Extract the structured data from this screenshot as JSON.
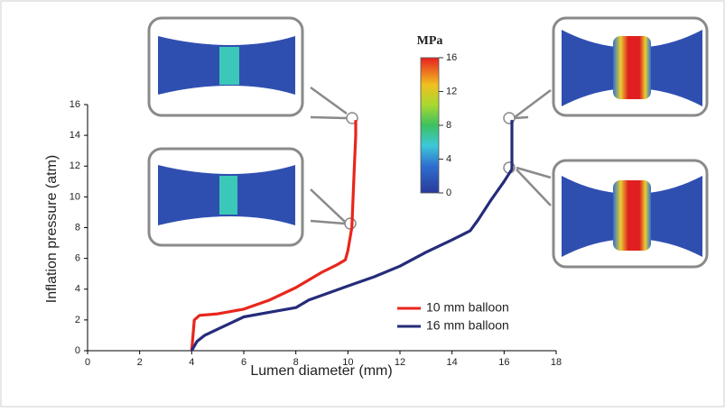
{
  "chart_data": {
    "type": "line",
    "x_label": "Lumen diameter (mm)",
    "y_label": "Inflation pressure (atm)",
    "xlim": [
      0,
      18
    ],
    "xticks": [
      0,
      2,
      4,
      6,
      8,
      10,
      12,
      14,
      16,
      18
    ],
    "ylim": [
      0,
      16
    ],
    "yticks": [
      0,
      2,
      4,
      6,
      8,
      10,
      12,
      14,
      16
    ],
    "legend": "lower right",
    "series": [
      {
        "name": "10 mm balloon",
        "color": "#e8261c",
        "x": [
          4.0,
          4.05,
          4.1,
          4.3,
          5,
          6,
          7,
          8,
          8.5,
          9,
          9.6,
          9.9,
          10,
          10.1,
          10.15,
          10.2,
          10.25,
          10.3,
          10.3
        ],
        "values": [
          0,
          1,
          2,
          2.3,
          2.4,
          2.7,
          3.3,
          4.1,
          4.6,
          5.1,
          5.6,
          5.9,
          6.5,
          7.5,
          8,
          10,
          12,
          14,
          15
        ]
      },
      {
        "name": "16 mm balloon",
        "color": "#252c7a",
        "x": [
          4.0,
          4.2,
          4.5,
          5,
          5.5,
          6,
          7,
          8,
          8.5,
          9,
          10,
          11,
          12,
          13,
          14,
          14.7,
          15,
          15.5,
          16,
          16.3,
          16.3,
          16.3
        ],
        "values": [
          0,
          0.6,
          1.0,
          1.4,
          1.8,
          2.2,
          2.5,
          2.8,
          3.3,
          3.6,
          4.2,
          4.8,
          5.5,
          6.4,
          7.2,
          7.8,
          8.5,
          9.8,
          11,
          11.8,
          13,
          15
        ]
      }
    ],
    "colorbar": {
      "label": "MPa",
      "lim": [
        0,
        16
      ],
      "ticks": [
        0,
        4,
        8,
        12,
        16
      ]
    }
  }
}
